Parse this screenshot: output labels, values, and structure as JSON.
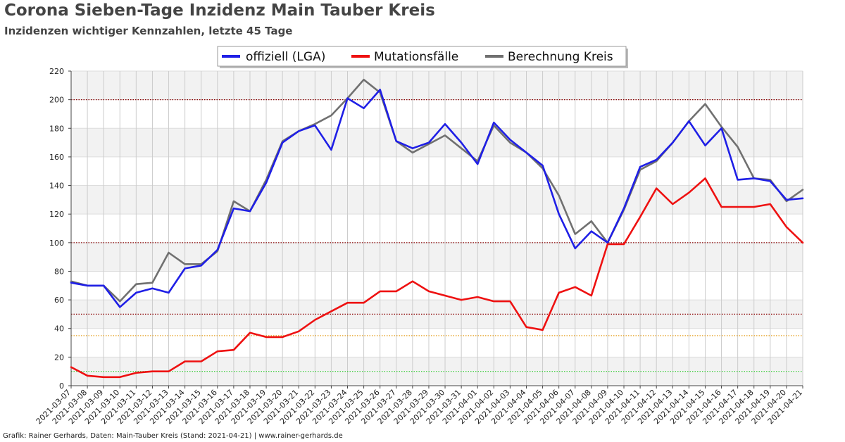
{
  "header": {
    "title": "Corona Sieben-Tage Inzidenz Main Tauber Kreis",
    "subtitle": "Inzidenzen wichtiger Kennzahlen, letzte 45 Tage"
  },
  "footer": {
    "credit": "Grafik: Rainer Gerhards, Daten: Main-Tauber Kreis (Stand: 2021-04-21) | www.rainer-gerhards.de"
  },
  "chart_data": {
    "type": "line",
    "title": "Corona Sieben-Tage Inzidenz Main Tauber Kreis",
    "subtitle": "Inzidenzen wichtiger Kennzahlen, letzte 45 Tage",
    "xlabel": "",
    "ylabel": "",
    "ylim": [
      0,
      220
    ],
    "yticks": [
      0,
      20,
      40,
      60,
      80,
      100,
      120,
      140,
      160,
      180,
      200,
      220
    ],
    "grid": true,
    "legend_position": "top-center",
    "x": [
      "2021-03-07",
      "2021-03-08",
      "2021-03-09",
      "2021-03-10",
      "2021-03-11",
      "2021-03-12",
      "2021-03-13",
      "2021-03-14",
      "2021-03-15",
      "2021-03-16",
      "2021-03-17",
      "2021-03-18",
      "2021-03-19",
      "2021-03-20",
      "2021-03-21",
      "2021-03-22",
      "2021-03-23",
      "2021-03-24",
      "2021-03-25",
      "2021-03-26",
      "2021-03-27",
      "2021-03-28",
      "2021-03-29",
      "2021-03-30",
      "2021-03-31",
      "2021-04-01",
      "2021-04-02",
      "2021-04-03",
      "2021-04-04",
      "2021-04-05",
      "2021-04-06",
      "2021-04-07",
      "2021-04-08",
      "2021-04-09",
      "2021-04-10",
      "2021-04-11",
      "2021-04-12",
      "2021-04-13",
      "2021-04-14",
      "2021-04-15",
      "2021-04-16",
      "2021-04-17",
      "2021-04-18",
      "2021-04-19",
      "2021-04-20",
      "2021-04-21"
    ],
    "reference_lines": [
      {
        "value": 200,
        "color": "#8b0000"
      },
      {
        "value": 100,
        "color": "#8b0000"
      },
      {
        "value": 50,
        "color": "#8b0000"
      },
      {
        "value": 35,
        "color": "#e6a020"
      },
      {
        "value": 10,
        "color": "#33cc33"
      }
    ],
    "series": [
      {
        "name": "offiziell (LGA)",
        "color": "#1f1fe6",
        "values": [
          72,
          70,
          70,
          55,
          65,
          68,
          65,
          82,
          84,
          95,
          124,
          122,
          142,
          170,
          178,
          182,
          165,
          201,
          194,
          207,
          171,
          166,
          170,
          183,
          170,
          155,
          184,
          172,
          163,
          154,
          120,
          96,
          108,
          100,
          124,
          153,
          158,
          170,
          185,
          168,
          180,
          144,
          145,
          143,
          130,
          131
        ]
      },
      {
        "name": "Mutationsfälle",
        "color": "#ee1111",
        "values": [
          13,
          7,
          6,
          6,
          9,
          10,
          10,
          17,
          17,
          24,
          25,
          37,
          34,
          34,
          38,
          46,
          52,
          58,
          58,
          66,
          66,
          73,
          66,
          63,
          60,
          62,
          59,
          59,
          41,
          39,
          65,
          69,
          63,
          99,
          99,
          118,
          138,
          127,
          135,
          145,
          125,
          125,
          125,
          127,
          111,
          100
        ]
      },
      {
        "name": "Berechnung Kreis",
        "color": "#707070",
        "values": [
          73,
          70,
          70,
          59,
          71,
          72,
          93,
          85,
          85,
          94,
          129,
          122,
          144,
          171,
          178,
          183,
          189,
          201,
          214,
          205,
          171,
          163,
          169,
          175,
          166,
          157,
          182,
          170,
          163,
          152,
          133,
          106,
          115,
          100,
          123,
          151,
          157,
          170,
          185,
          197,
          181,
          167,
          145,
          144,
          129,
          137
        ]
      }
    ]
  }
}
